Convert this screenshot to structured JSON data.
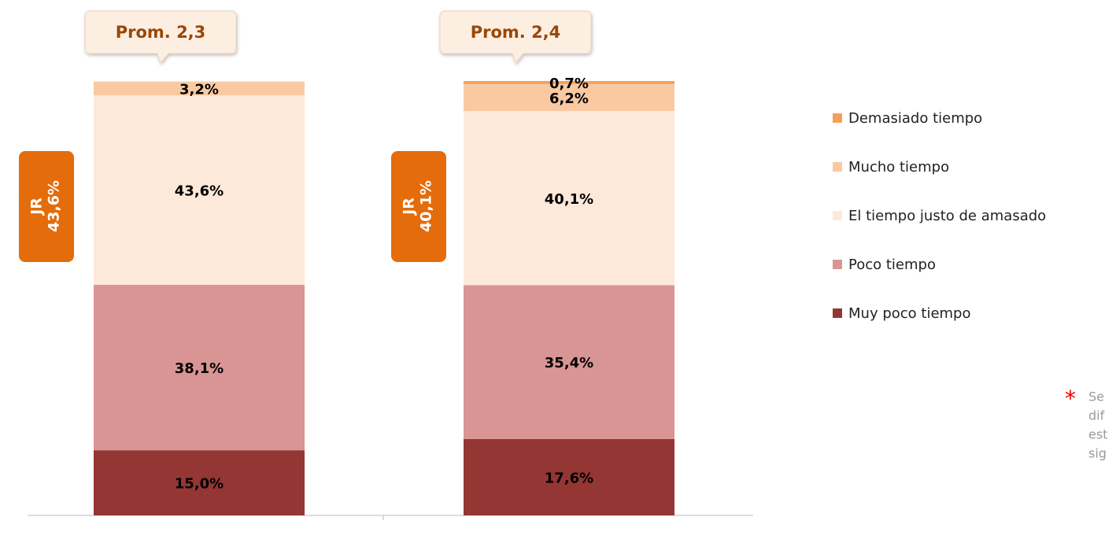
{
  "chart_data": {
    "type": "stacked_bar",
    "categories": [
      null,
      null
    ],
    "ylim": [
      0,
      100
    ],
    "series": [
      {
        "name": "Muy poco tiempo",
        "color": "#943634",
        "values": [
          15.0,
          17.6
        ],
        "value_labels": [
          "15,0%",
          "17,6%"
        ]
      },
      {
        "name": "Poco tiempo",
        "color": "#d99594",
        "values": [
          38.1,
          35.4
        ],
        "value_labels": [
          "38,1%",
          "35,4%"
        ]
      },
      {
        "name": "El tiempo justo de amasado",
        "color": "#fde9d9",
        "values": [
          43.6,
          40.1
        ],
        "value_labels": [
          "43,6%",
          "40,1%"
        ]
      },
      {
        "name": "Mucho tiempo",
        "color": "#f9caa2",
        "values": [
          3.2,
          6.2
        ],
        "value_labels": [
          "3,2%",
          "6,2%"
        ]
      },
      {
        "name": "Demasiado tiempo",
        "color": "#f4a05a",
        "values": [
          0,
          0.7
        ],
        "value_labels": [
          null,
          "0,7%"
        ]
      }
    ],
    "callouts": [
      "Prom. 2,3",
      "Prom. 2,4"
    ],
    "badges": [
      {
        "label": "JR",
        "value_label": "43,6%"
      },
      {
        "label": "JR",
        "value_label": "40,1%"
      }
    ],
    "note_lines": [
      "Se",
      "dif",
      "est",
      "sig"
    ]
  }
}
